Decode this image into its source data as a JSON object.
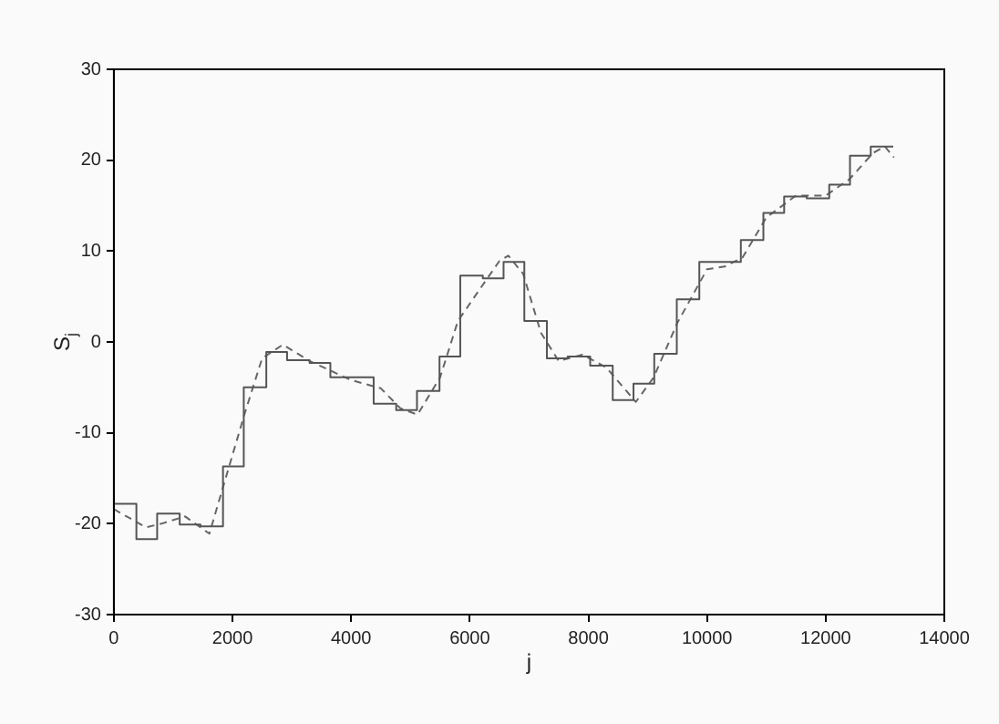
{
  "chart_data": {
    "type": "line",
    "xlabel": "j",
    "ylabel": "S$_{j}$",
    "xlim": [
      0,
      14000
    ],
    "xticks": [
      0,
      2000,
      4000,
      6000,
      8000,
      10000,
      12000,
      14000
    ],
    "ylim": [
      -30,
      30
    ],
    "yticks": [
      -30,
      -20,
      -10,
      0,
      10,
      20,
      30
    ],
    "grid": false,
    "legend": false,
    "series": [
      {
        "type": "step",
        "color": "#555555",
        "line_style": "solid",
        "x": [
          0,
          380,
          730,
          1110,
          1460,
          1840,
          2190,
          2570,
          2920,
          3300,
          3650,
          4030,
          4380,
          4760,
          5110,
          5490,
          5840,
          6220,
          6570,
          6920,
          7300,
          7650,
          8030,
          8410,
          8760,
          9110,
          9490,
          9870,
          10220,
          10570,
          10950,
          11300,
          11680,
          12060,
          12410,
          12760,
          13140
        ],
        "values": [
          -17.8,
          -21.7,
          -18.9,
          -20.1,
          -20.3,
          -13.7,
          -5,
          -1.1,
          -2,
          -2.3,
          -3.9,
          -3.9,
          -6.8,
          -7.5,
          -5.4,
          -1.6,
          7.3,
          7,
          8.8,
          2.3,
          -1.8,
          -1.6,
          -2.6,
          -6.4,
          -4.6,
          -1.3,
          4.7,
          8.8,
          8.8,
          11.2,
          14.2,
          16,
          15.8,
          17.3,
          20.5,
          21.5,
          21.5
        ]
      },
      {
        "type": "line",
        "color": "#666666",
        "line_style": "dashed",
        "x": [
          0,
          540,
          800,
          1200,
          1610,
          2200,
          2500,
          2850,
          3300,
          4000,
          4500,
          4830,
          5120,
          5500,
          5800,
          6200,
          6500,
          6650,
          6900,
          7200,
          7500,
          7900,
          8300,
          8800,
          9100,
          9500,
          10000,
          10300,
          10600,
          11000,
          11500,
          12000,
          12400,
          12800,
          13000,
          13150
        ],
        "values": [
          -18.4,
          -20.4,
          -20,
          -19.2,
          -21.1,
          -8,
          -1.8,
          -0.3,
          -2.1,
          -4.2,
          -5.1,
          -7.3,
          -8,
          -3.9,
          2.3,
          6.1,
          8.9,
          9.5,
          7.5,
          1,
          -2.1,
          -1.4,
          -2.8,
          -6.6,
          -3.9,
          2.1,
          8,
          8.3,
          9.3,
          13.7,
          16.1,
          16.1,
          17.9,
          20.8,
          21.5,
          20.3
        ]
      }
    ]
  }
}
